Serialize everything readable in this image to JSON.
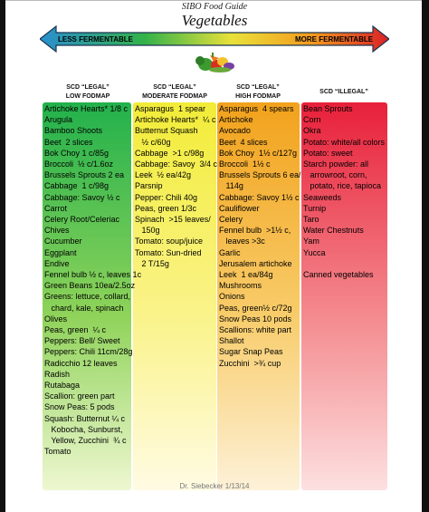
{
  "header": {
    "supertitle": "SIBO Food Guide",
    "title": "Vegetables"
  },
  "scale": {
    "left_label": "LESS FERMENTABLE",
    "right_label": "MORE FERMENTABLE"
  },
  "columns": [
    {
      "heading": [
        "SCD “LEGAL”",
        "LOW FODMAP"
      ],
      "color": "#22b14c",
      "items": [
        "Artichoke Hearts* 1/8 c",
        "Arugula",
        "Bamboo Shoots",
        "Beet  2 slices",
        "Bok Choy 1 c/85g",
        "Broccoli  ½ c/1.6oz",
        "Brussels Sprouts 2 ea",
        "Cabbage  1 c/98g",
        "Cabbage: Savoy ½ c",
        "Carrot",
        "Celery Root/Celeriac",
        "Chives",
        "Cucumber",
        "Eggplant",
        "Endive",
        "Fennel bulb ½ c, leaves 1c",
        "Green Beans 10ea/2.5oz",
        "Greens: lettuce, collard,",
        "   chard, kale, spinach",
        "Olives",
        "Peas, green  ¼ c",
        "Peppers: Bell/ Sweet",
        "Peppers: Chili 11cm/28g",
        "Radicchio 12 leaves",
        "Radish",
        "Rutabaga",
        "Scallion: green part",
        "Snow Peas: 5 pods",
        "Squash: Butternut ¼ c",
        "   Kobocha, Sunburst,",
        "   Yellow, Zucchini  ¾ c",
        "Tomato"
      ]
    },
    {
      "heading": [
        "SCD “LEGAL”",
        "MODERATE FODMAP"
      ],
      "color": "#f2ec38",
      "items": [
        "Asparagus  1 spear",
        "Artichoke Hearts*  ¼ c",
        "Butternut Squash",
        "   ½ c/60g",
        "Cabbage  >1 c/98g",
        "Cabbage: Savoy  3/4 c",
        "Leek  ½ ea/42g",
        "Parsnip",
        "Pepper: Chili 40g",
        "Peas, green 1/3c",
        "Spinach  >15 leaves/",
        "   150g",
        "Tomato: soup/juice",
        "Tomato: Sun-dried",
        "   2 T/15g"
      ]
    },
    {
      "heading": [
        "SCD “LEGAL”",
        "HIGH FODMAP"
      ],
      "color": "#f2a21c",
      "items": [
        "Asparagus  4 spears",
        "Artichoke",
        "Avocado",
        "Beet  4 slices",
        "Bok Choy  1½ c/127g",
        "Broccoli  1½ c",
        "Brussels Sprouts 6 ea/",
        "   114g",
        "Cabbage: Savoy 1½ c",
        "Cauliflower",
        "Celery",
        "Fennel bulb  >1½ c,",
        "   leaves >3c",
        "Garlic",
        "Jerusalem artichoke",
        "Leek  1 ea/84g",
        "Mushrooms",
        "Onions",
        "Peas, green½ c/72g",
        "Snow Peas 10 pods",
        "Scallions: white part",
        "Shallot",
        "Sugar Snap Peas",
        "Zucchini  >¾ cup"
      ]
    },
    {
      "heading": [
        "SCD “ILLEGAL”"
      ],
      "color": "#e8203a",
      "items": [
        "Bean Sprouts",
        "Corn",
        "Okra",
        "Potato: white/all colors",
        "Potato: sweet",
        "Starch powder: all",
        "   arrowroot, corn,",
        "   potato, rice, tapioca",
        "Seaweeds",
        "Turnip",
        "Taro",
        "Water Chestnuts",
        "Yam",
        "Yucca",
        "",
        "Canned vegetables"
      ]
    }
  ],
  "footer": "Dr. Siebecker  1/13/14"
}
